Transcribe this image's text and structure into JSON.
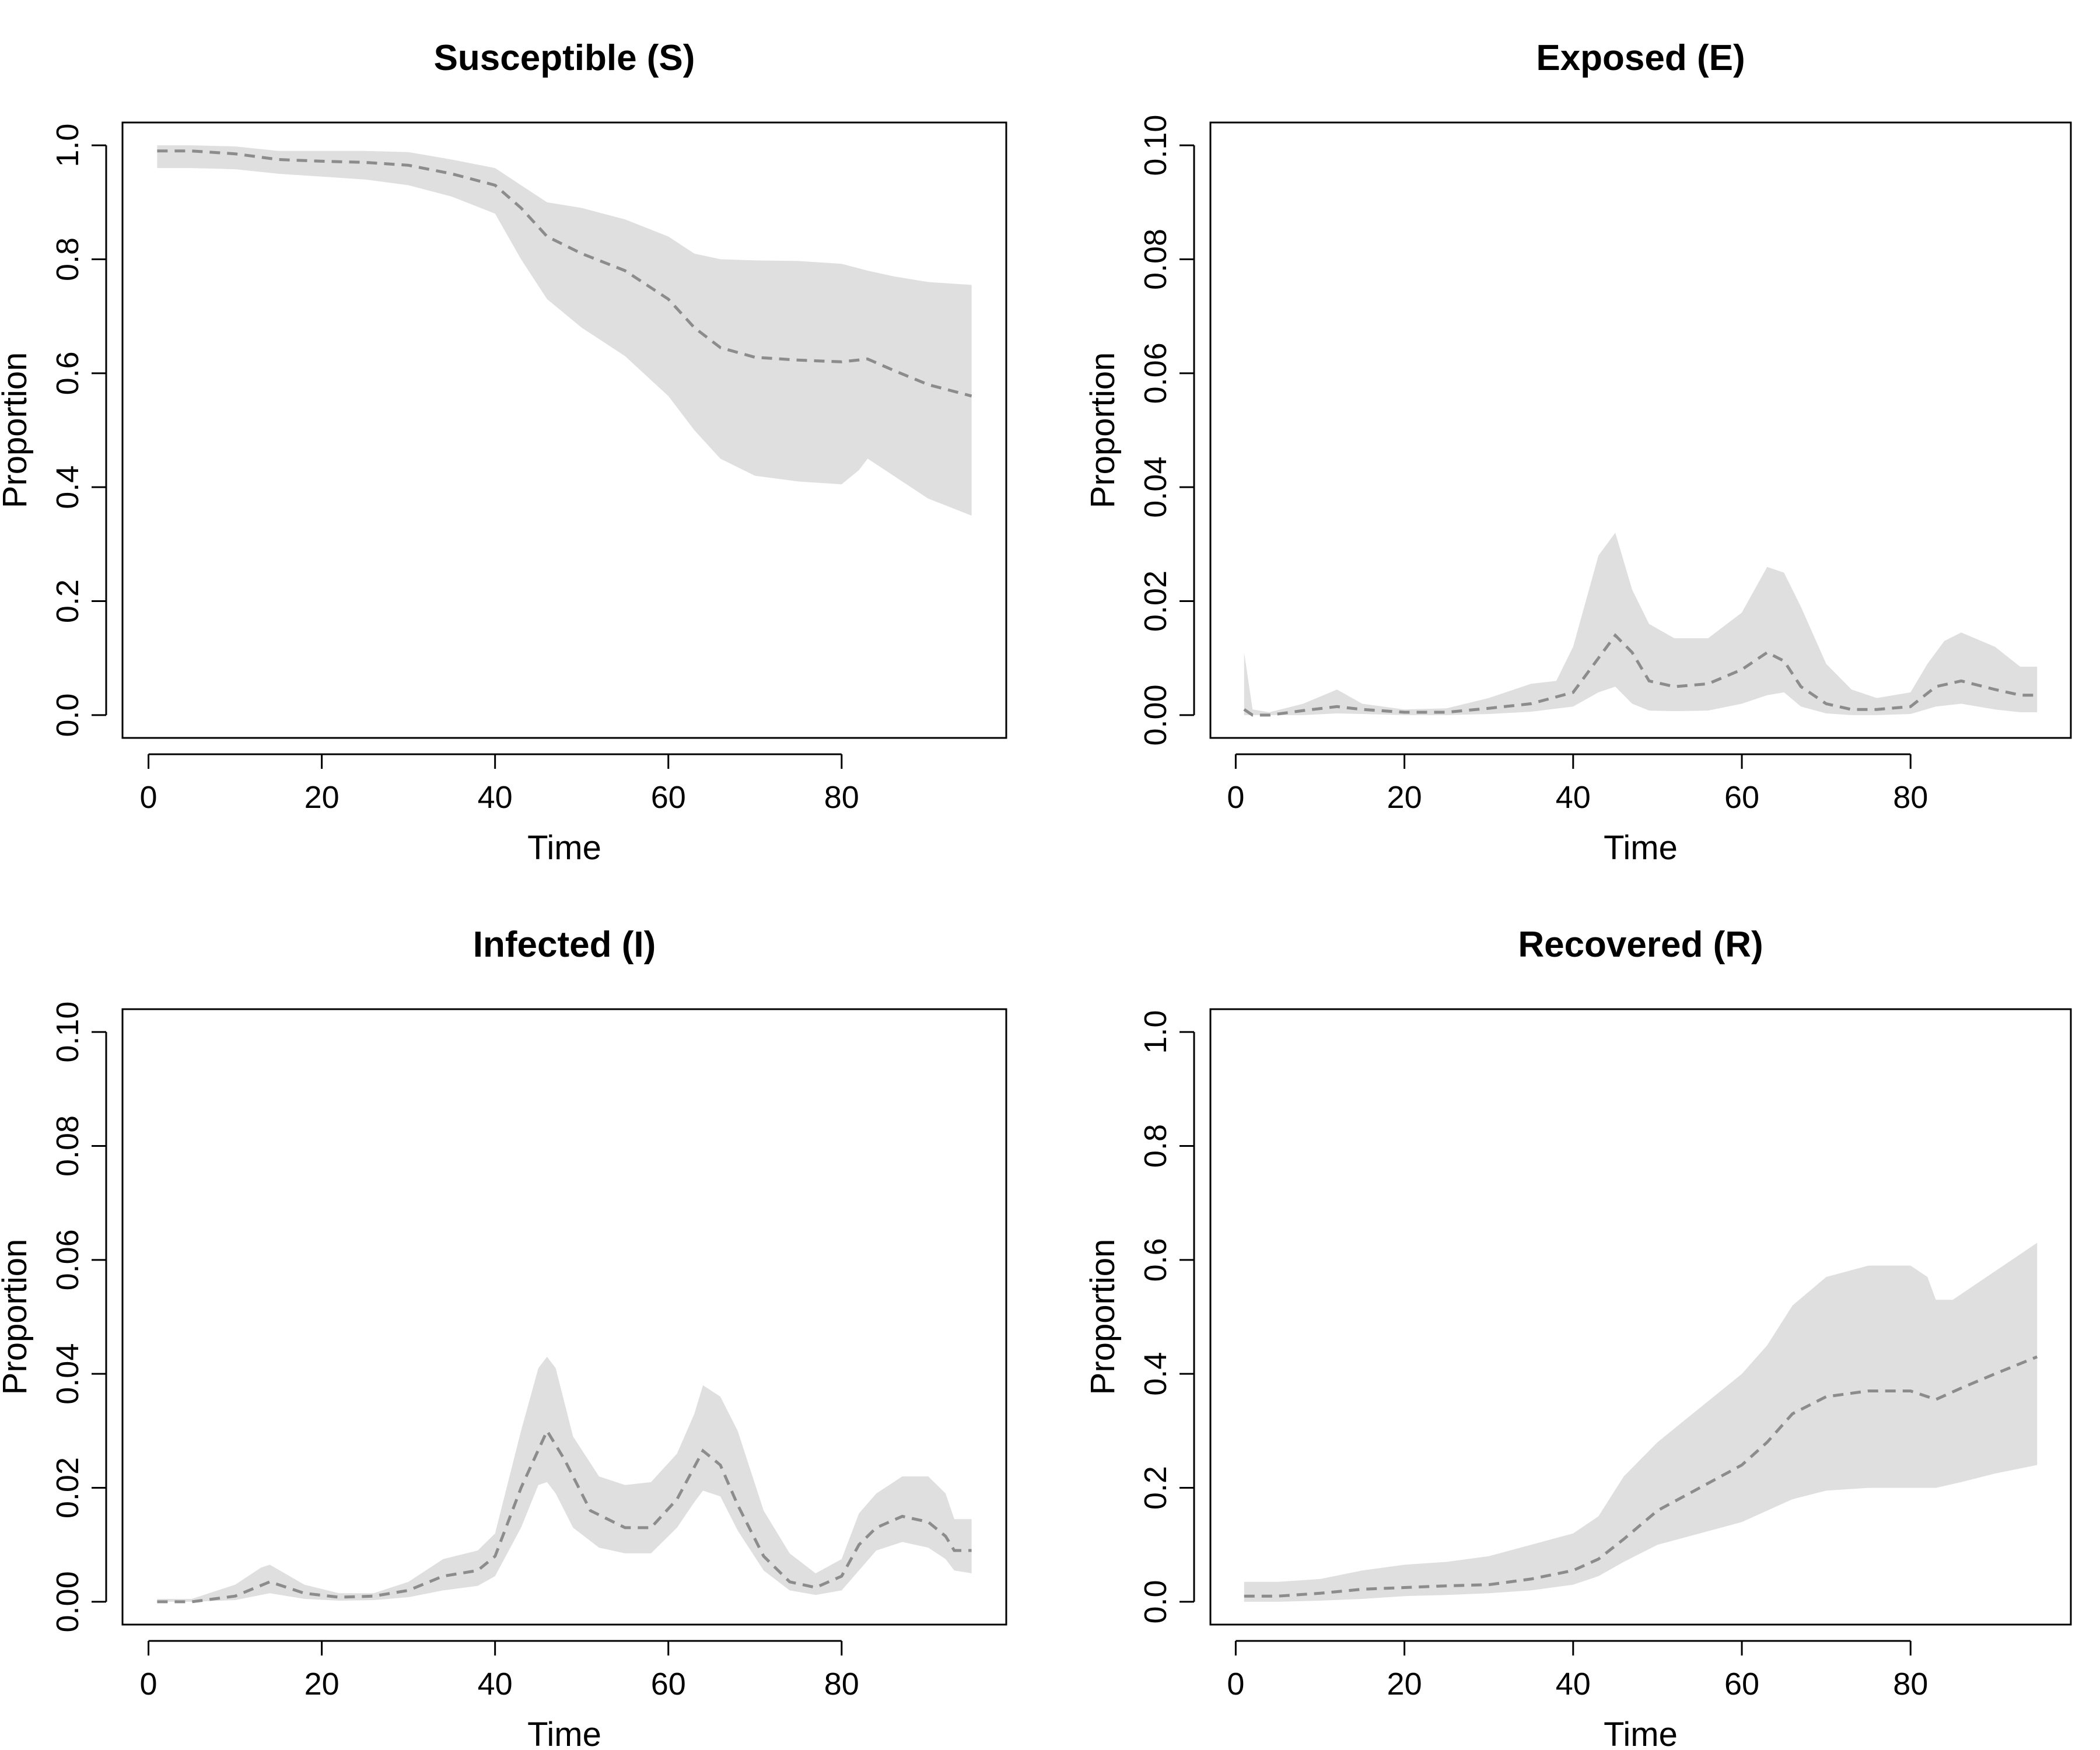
{
  "colors": {
    "band": "#dfdfdf",
    "median": "#8c8c8c",
    "axis": "#000000"
  },
  "chart_data": [
    {
      "type": "area",
      "title": "Susceptible (S)",
      "xlabel": "Time",
      "ylabel": "Proportion",
      "xlim": [
        -3,
        99
      ],
      "ylim": [
        -0.04,
        1.04
      ],
      "xticks": [
        "0",
        "20",
        "40",
        "60",
        "80"
      ],
      "xtick_values": [
        0,
        20,
        40,
        60,
        80
      ],
      "yticks": [
        "0.0",
        "0.2",
        "0.4",
        "0.6",
        "0.8",
        "1.0"
      ],
      "ytick_values": [
        0,
        0.2,
        0.4,
        0.6,
        0.8,
        1.0
      ],
      "series": [
        {
          "name": "median",
          "style": "dashed",
          "x": [
            1,
            5,
            10,
            15,
            20,
            25,
            30,
            35,
            40,
            43,
            46,
            50,
            55,
            60,
            63,
            66,
            70,
            75,
            80,
            83,
            86,
            90,
            95
          ],
          "y": [
            0.99,
            0.99,
            0.985,
            0.975,
            0.972,
            0.97,
            0.965,
            0.95,
            0.93,
            0.89,
            0.84,
            0.81,
            0.78,
            0.73,
            0.68,
            0.645,
            0.628,
            0.623,
            0.62,
            0.625,
            0.605,
            0.58,
            0.56
          ]
        },
        {
          "name": "upper",
          "x": [
            1,
            5,
            10,
            15,
            20,
            25,
            30,
            35,
            40,
            43,
            46,
            50,
            55,
            60,
            63,
            66,
            70,
            75,
            80,
            83,
            86,
            90,
            95
          ],
          "y": [
            1.0,
            1.0,
            0.998,
            0.99,
            0.99,
            0.99,
            0.988,
            0.975,
            0.96,
            0.93,
            0.9,
            0.89,
            0.87,
            0.84,
            0.81,
            0.8,
            0.798,
            0.797,
            0.792,
            0.78,
            0.77,
            0.76,
            0.755
          ]
        },
        {
          "name": "lower",
          "x": [
            1,
            5,
            10,
            15,
            20,
            25,
            30,
            35,
            40,
            43,
            46,
            50,
            55,
            60,
            63,
            66,
            70,
            75,
            80,
            82,
            83,
            86,
            90,
            95
          ],
          "y": [
            0.96,
            0.96,
            0.958,
            0.95,
            0.945,
            0.94,
            0.93,
            0.91,
            0.88,
            0.8,
            0.73,
            0.68,
            0.63,
            0.56,
            0.5,
            0.45,
            0.42,
            0.41,
            0.405,
            0.43,
            0.45,
            0.42,
            0.38,
            0.35
          ]
        }
      ]
    },
    {
      "type": "area",
      "title": "Exposed (E)",
      "xlabel": "Time",
      "ylabel": "Proportion",
      "xlim": [
        -3,
        99
      ],
      "ylim": [
        -0.004,
        0.104
      ],
      "xticks": [
        "0",
        "20",
        "40",
        "60",
        "80"
      ],
      "xtick_values": [
        0,
        20,
        40,
        60,
        80
      ],
      "yticks": [
        "0.00",
        "0.02",
        "0.04",
        "0.06",
        "0.08",
        "0.10"
      ],
      "ytick_values": [
        0,
        0.02,
        0.04,
        0.06,
        0.08,
        0.1
      ],
      "series": [
        {
          "name": "median",
          "style": "dashed",
          "x": [
            1,
            2,
            4,
            8,
            12,
            15,
            20,
            25,
            30,
            35,
            40,
            43,
            45,
            47,
            49,
            52,
            56,
            60,
            63,
            65,
            67,
            70,
            73,
            76,
            80,
            83,
            86,
            90,
            93,
            95
          ],
          "y": [
            0.001,
            0.0,
            0.0,
            0.0008,
            0.0015,
            0.001,
            0.0005,
            0.0005,
            0.0012,
            0.002,
            0.004,
            0.01,
            0.014,
            0.011,
            0.006,
            0.005,
            0.0055,
            0.008,
            0.011,
            0.0095,
            0.005,
            0.002,
            0.001,
            0.001,
            0.0015,
            0.005,
            0.006,
            0.0045,
            0.0035,
            0.0035
          ]
        },
        {
          "name": "upper",
          "x": [
            1,
            2,
            4,
            8,
            12,
            15,
            20,
            25,
            30,
            35,
            38,
            40,
            43,
            45,
            47,
            49,
            52,
            56,
            60,
            63,
            65,
            67,
            70,
            73,
            76,
            80,
            82,
            84,
            86,
            90,
            93,
            95
          ],
          "y": [
            0.011,
            0.001,
            0.0005,
            0.002,
            0.0045,
            0.002,
            0.001,
            0.0012,
            0.003,
            0.0055,
            0.006,
            0.012,
            0.028,
            0.032,
            0.022,
            0.016,
            0.0135,
            0.0135,
            0.018,
            0.026,
            0.025,
            0.019,
            0.009,
            0.0045,
            0.003,
            0.004,
            0.009,
            0.013,
            0.0145,
            0.012,
            0.0085,
            0.0085
          ]
        },
        {
          "name": "lower",
          "x": [
            1,
            2,
            4,
            8,
            12,
            15,
            20,
            25,
            30,
            35,
            40,
            43,
            45,
            47,
            49,
            52,
            56,
            60,
            63,
            65,
            67,
            70,
            73,
            76,
            80,
            83,
            86,
            90,
            93,
            95
          ],
          "y": [
            0.0,
            0.0,
            0.0,
            0.0,
            0.0003,
            0.0002,
            0.0,
            0.0,
            0.0002,
            0.0006,
            0.0015,
            0.004,
            0.005,
            0.002,
            0.0008,
            0.0007,
            0.0008,
            0.002,
            0.0035,
            0.004,
            0.0015,
            0.0003,
            0.0,
            0.0,
            0.0002,
            0.0015,
            0.002,
            0.001,
            0.0005,
            0.0005
          ]
        }
      ]
    },
    {
      "type": "area",
      "title": "Infected (I)",
      "xlabel": "Time",
      "ylabel": "Proportion",
      "xlim": [
        -3,
        99
      ],
      "ylim": [
        -0.004,
        0.104
      ],
      "xticks": [
        "0",
        "20",
        "40",
        "60",
        "80"
      ],
      "xtick_values": [
        0,
        20,
        40,
        60,
        80
      ],
      "yticks": [
        "0.00",
        "0.02",
        "0.04",
        "0.06",
        "0.08",
        "0.10"
      ],
      "ytick_values": [
        0,
        0.02,
        0.04,
        0.06,
        0.08,
        0.1
      ],
      "series": [
        {
          "name": "median",
          "style": "dashed",
          "x": [
            1,
            5,
            10,
            14,
            18,
            22,
            26,
            30,
            34,
            38,
            40,
            43,
            46,
            48,
            51,
            55,
            58,
            61,
            64,
            66,
            68,
            71,
            74,
            77,
            80,
            82,
            84,
            87,
            90,
            92,
            93,
            95
          ],
          "y": [
            0.0,
            0.0,
            0.001,
            0.0035,
            0.0015,
            0.0008,
            0.001,
            0.002,
            0.0045,
            0.0055,
            0.008,
            0.02,
            0.03,
            0.025,
            0.016,
            0.013,
            0.013,
            0.018,
            0.0265,
            0.024,
            0.017,
            0.008,
            0.0035,
            0.0025,
            0.0045,
            0.01,
            0.013,
            0.015,
            0.014,
            0.0115,
            0.009,
            0.009
          ]
        },
        {
          "name": "upper",
          "x": [
            1,
            5,
            10,
            13,
            14,
            18,
            22,
            26,
            30,
            34,
            38,
            40,
            43,
            45,
            46,
            47,
            49,
            52,
            55,
            58,
            61,
            63,
            64,
            66,
            68,
            71,
            74,
            77,
            80,
            82,
            84,
            87,
            90,
            92,
            93,
            95
          ],
          "y": [
            0.0005,
            0.0005,
            0.003,
            0.006,
            0.0065,
            0.003,
            0.0015,
            0.0015,
            0.0035,
            0.0075,
            0.009,
            0.012,
            0.03,
            0.041,
            0.043,
            0.041,
            0.029,
            0.022,
            0.0205,
            0.021,
            0.026,
            0.033,
            0.038,
            0.036,
            0.03,
            0.016,
            0.0085,
            0.005,
            0.0075,
            0.0155,
            0.019,
            0.022,
            0.022,
            0.019,
            0.0145,
            0.0145
          ]
        },
        {
          "name": "lower",
          "x": [
            1,
            5,
            10,
            14,
            18,
            22,
            26,
            30,
            34,
            38,
            40,
            43,
            45,
            46,
            47,
            49,
            52,
            55,
            58,
            61,
            63,
            64,
            66,
            68,
            71,
            74,
            77,
            80,
            82,
            84,
            87,
            90,
            92,
            93,
            95
          ],
          "y": [
            0.0,
            0.0,
            0.0003,
            0.0015,
            0.0005,
            0.0002,
            0.0003,
            0.0008,
            0.002,
            0.0028,
            0.0045,
            0.013,
            0.0205,
            0.021,
            0.019,
            0.013,
            0.0095,
            0.0085,
            0.0085,
            0.013,
            0.0175,
            0.0195,
            0.0185,
            0.0125,
            0.0055,
            0.002,
            0.0012,
            0.002,
            0.0055,
            0.009,
            0.0105,
            0.0095,
            0.0075,
            0.0055,
            0.005
          ]
        }
      ]
    },
    {
      "type": "area",
      "title": "Recovered (R)",
      "xlabel": "Time",
      "ylabel": "Proportion",
      "xlim": [
        -3,
        99
      ],
      "ylim": [
        -0.04,
        1.04
      ],
      "xticks": [
        "0",
        "20",
        "40",
        "60",
        "80"
      ],
      "xtick_values": [
        0,
        20,
        40,
        60,
        80
      ],
      "yticks": [
        "0.0",
        "0.2",
        "0.4",
        "0.6",
        "0.8",
        "1.0"
      ],
      "ytick_values": [
        0,
        0.2,
        0.4,
        0.6,
        0.8,
        1.0
      ],
      "series": [
        {
          "name": "median",
          "style": "dashed",
          "x": [
            1,
            5,
            10,
            15,
            20,
            25,
            30,
            35,
            40,
            43,
            46,
            50,
            55,
            60,
            63,
            66,
            70,
            75,
            80,
            82,
            83,
            86,
            90,
            95
          ],
          "y": [
            0.01,
            0.01,
            0.015,
            0.022,
            0.025,
            0.028,
            0.03,
            0.04,
            0.055,
            0.075,
            0.11,
            0.16,
            0.2,
            0.24,
            0.28,
            0.33,
            0.36,
            0.37,
            0.37,
            0.36,
            0.355,
            0.375,
            0.4,
            0.43
          ]
        },
        {
          "name": "upper",
          "x": [
            1,
            5,
            10,
            15,
            20,
            25,
            30,
            35,
            40,
            43,
            46,
            50,
            55,
            60,
            63,
            66,
            70,
            75,
            80,
            82,
            83,
            85,
            90,
            95
          ],
          "y": [
            0.035,
            0.035,
            0.04,
            0.055,
            0.065,
            0.07,
            0.08,
            0.1,
            0.12,
            0.15,
            0.22,
            0.28,
            0.34,
            0.4,
            0.45,
            0.52,
            0.57,
            0.59,
            0.59,
            0.57,
            0.53,
            0.53,
            0.58,
            0.63
          ]
        },
        {
          "name": "lower",
          "x": [
            1,
            5,
            10,
            15,
            20,
            25,
            30,
            35,
            40,
            43,
            46,
            50,
            55,
            60,
            63,
            66,
            70,
            75,
            80,
            83,
            86,
            90,
            95
          ],
          "y": [
            0.0,
            0.0,
            0.002,
            0.005,
            0.01,
            0.012,
            0.015,
            0.02,
            0.03,
            0.045,
            0.07,
            0.1,
            0.12,
            0.14,
            0.16,
            0.18,
            0.195,
            0.2,
            0.2,
            0.2,
            0.21,
            0.225,
            0.24
          ]
        }
      ]
    }
  ]
}
